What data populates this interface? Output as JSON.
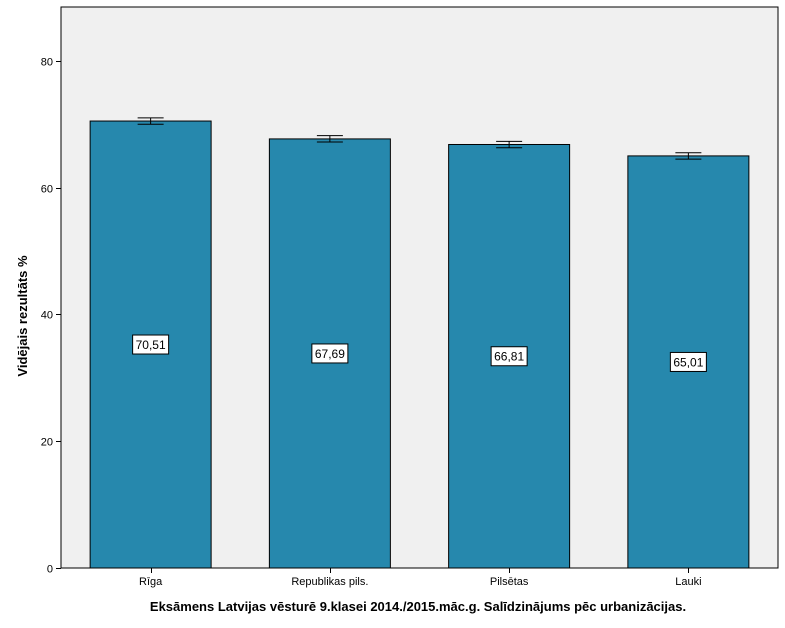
{
  "chart_data": {
    "type": "bar",
    "categories": [
      "Rīga",
      "Republikas pils.",
      "Pilsētas",
      "Lauki"
    ],
    "values": [
      70.51,
      67.69,
      66.81,
      65.01
    ],
    "data_labels": [
      "70,51",
      "67,69",
      "66,81",
      "65,01"
    ],
    "error_bars": [
      {
        "low": 70.0,
        "high": 71.0
      },
      {
        "low": 67.2,
        "high": 68.2
      },
      {
        "low": 66.3,
        "high": 67.3
      },
      {
        "low": 64.5,
        "high": 65.5
      }
    ],
    "title": "",
    "xlabel": "Eksāmens Latvijas vēsturē 9.klasei 2014./2015.māc.g. Salīdzinājums pēc urbanizācijas.",
    "ylabel": "Vidējais rezultāts %",
    "ylim": [
      0,
      88.5
    ],
    "yticks": [
      0,
      20,
      40,
      60,
      80
    ],
    "ytick_labels": [
      "0",
      "20",
      "40",
      "60",
      "80"
    ],
    "grid": false,
    "colors": {
      "bar": "#2688AD",
      "plot_background": "#F0F0F0",
      "axis": "#000000"
    }
  }
}
